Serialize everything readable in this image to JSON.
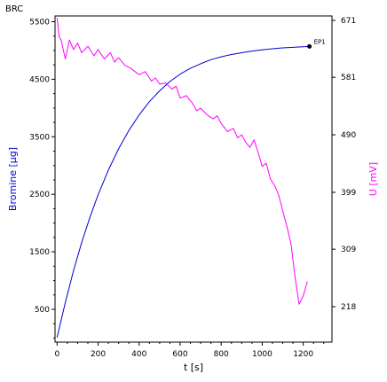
{
  "chart_data": {
    "type": "line",
    "title": "BRC",
    "xlabel": "t [s]",
    "ylabel_left": "Bromine [µg]",
    "ylabel_right": "U [mV]",
    "xlim": [
      -10,
      1340
    ],
    "ylim_left": [
      -70,
      5600
    ],
    "ylim_right": [
      162,
      678
    ],
    "x_ticks": [
      0,
      200,
      400,
      600,
      800,
      1000,
      1200
    ],
    "y_left_ticks": [
      500,
      1500,
      2500,
      3500,
      4500,
      5500
    ],
    "y_right_ticks": [
      218,
      309,
      399,
      490,
      581,
      671
    ],
    "grid": false,
    "series": [
      {
        "axis": "left",
        "color": "#0000cc",
        "x": [
          0,
          40,
          80,
          120,
          160,
          200,
          250,
          300,
          350,
          400,
          450,
          500,
          550,
          600,
          650,
          700,
          750,
          800,
          850,
          900,
          950,
          1000,
          1050,
          1100,
          1150,
          1200,
          1230
        ],
        "y": [
          10,
          620,
          1170,
          1660,
          2100,
          2490,
          2920,
          3290,
          3610,
          3880,
          4110,
          4300,
          4460,
          4590,
          4690,
          4770,
          4840,
          4890,
          4930,
          4960,
          4990,
          5010,
          5030,
          5045,
          5055,
          5065,
          5070
        ]
      },
      {
        "axis": "right",
        "color": "#ff00ff",
        "x": [
          0,
          5,
          10,
          20,
          30,
          40,
          60,
          80,
          100,
          120,
          150,
          180,
          200,
          230,
          260,
          280,
          300,
          330,
          360,
          380,
          400,
          430,
          460,
          480,
          500,
          530,
          560,
          580,
          600,
          630,
          660,
          680,
          700,
          730,
          760,
          780,
          800,
          830,
          860,
          880,
          900,
          920,
          940,
          960,
          980,
          1000,
          1020,
          1040,
          1060,
          1080,
          1100,
          1120,
          1140,
          1160,
          1180,
          1200,
          1220
        ],
        "y": [
          675,
          660,
          645,
          640,
          625,
          610,
          640,
          625,
          635,
          620,
          630,
          615,
          625,
          610,
          620,
          605,
          612,
          600,
          595,
          590,
          585,
          590,
          575,
          580,
          570,
          572,
          562,
          567,
          548,
          552,
          540,
          528,
          532,
          522,
          515,
          520,
          508,
          495,
          500,
          485,
          490,
          478,
          470,
          482,
          462,
          440,
          445,
          420,
          410,
          395,
          370,
          345,
          318,
          265,
          222,
          235,
          258
        ]
      }
    ],
    "endpoint": {
      "label": "EP1",
      "x": 1230,
      "y": 5070
    }
  }
}
